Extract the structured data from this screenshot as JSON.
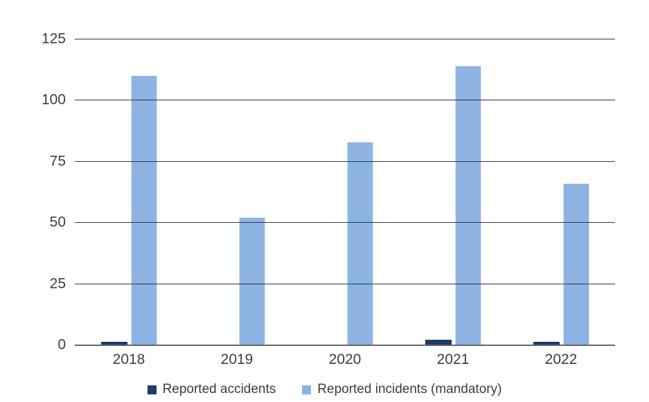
{
  "chart": {
    "background": "#ffffff",
    "text_color": "#3d3d3d",
    "gridline_color": "#33333b",
    "axis_line_color": "#666666"
  },
  "chart_data": {
    "type": "bar",
    "categories": [
      "2018",
      "2019",
      "2020",
      "2021",
      "2022"
    ],
    "series": [
      {
        "name": "Reported accidents",
        "color": "#1E3A66",
        "values": [
          1,
          0,
          0,
          2,
          1
        ]
      },
      {
        "name": "Reported incidents (mandatory)",
        "color": "#8DB3E3",
        "edge_color": "#D9E3F5",
        "values": [
          110,
          52,
          83,
          114,
          66
        ]
      }
    ],
    "ylim": [
      0,
      125
    ],
    "yticks": [
      0,
      25,
      50,
      75,
      100,
      125
    ],
    "grid": true,
    "legend_position": "bottom"
  }
}
